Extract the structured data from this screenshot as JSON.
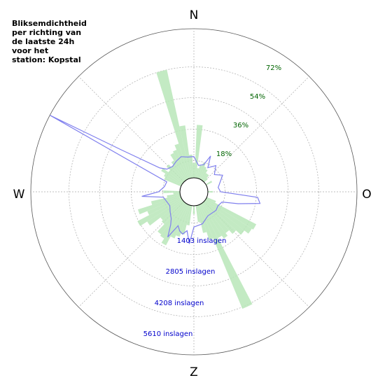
{
  "title_lines": [
    "Bliksemdichtheid",
    "per richting van",
    "de laatste 24h",
    "voor het",
    "station: Kopstal"
  ],
  "compass": {
    "n": "N",
    "e": "O",
    "s": "Z",
    "w": "W"
  },
  "percent_labels": [
    "18%",
    "36%",
    "54%",
    "72%"
  ],
  "count_labels": [
    "1403 inslagen",
    "2805 inslagen",
    "4208 inslagen",
    "5610 inslagen"
  ],
  "colors": {
    "bars": "#b8e6b8",
    "line": "#8080ee",
    "percent_text": "#006400",
    "count_text": "#0000cc"
  },
  "chart_data": {
    "type": "polar",
    "theta_direction": "clockwise, 0° = north",
    "radial_percent_ticks": [
      18,
      36,
      54,
      72
    ],
    "radial_count_ticks": [
      1403,
      2805,
      4208,
      5610
    ],
    "rmax_percent": 90,
    "rmax_count": 7013,
    "bar_width_deg": 5,
    "bars_percent": [
      {
        "dir": 0,
        "pct": 9
      },
      {
        "dir": 5,
        "pct": 32
      },
      {
        "dir": 10,
        "pct": 6
      },
      {
        "dir": 15,
        "pct": 8
      },
      {
        "dir": 20,
        "pct": 10
      },
      {
        "dir": 25,
        "pct": 8
      },
      {
        "dir": 30,
        "pct": 7
      },
      {
        "dir": 35,
        "pct": 5
      },
      {
        "dir": 40,
        "pct": 5
      },
      {
        "dir": 45,
        "pct": 3
      },
      {
        "dir": 60,
        "pct": 4
      },
      {
        "dir": 90,
        "pct": 3
      },
      {
        "dir": 115,
        "pct": 6
      },
      {
        "dir": 120,
        "pct": 34
      },
      {
        "dir": 125,
        "pct": 33
      },
      {
        "dir": 130,
        "pct": 30
      },
      {
        "dir": 135,
        "pct": 26
      },
      {
        "dir": 140,
        "pct": 23
      },
      {
        "dir": 145,
        "pct": 25
      },
      {
        "dir": 150,
        "pct": 23
      },
      {
        "dir": 155,
        "pct": 68
      },
      {
        "dir": 160,
        "pct": 22
      },
      {
        "dir": 165,
        "pct": 17
      },
      {
        "dir": 170,
        "pct": 10
      },
      {
        "dir": 180,
        "pct": 5
      },
      {
        "dir": 190,
        "pct": 12
      },
      {
        "dir": 195,
        "pct": 18
      },
      {
        "dir": 200,
        "pct": 20
      },
      {
        "dir": 205,
        "pct": 22
      },
      {
        "dir": 210,
        "pct": 28
      },
      {
        "dir": 215,
        "pct": 25
      },
      {
        "dir": 220,
        "pct": 24
      },
      {
        "dir": 225,
        "pct": 18
      },
      {
        "dir": 230,
        "pct": 17
      },
      {
        "dir": 235,
        "pct": 25
      },
      {
        "dir": 240,
        "pct": 30
      },
      {
        "dir": 245,
        "pct": 22
      },
      {
        "dir": 250,
        "pct": 27
      },
      {
        "dir": 255,
        "pct": 18
      },
      {
        "dir": 260,
        "pct": 8
      },
      {
        "dir": 265,
        "pct": 4
      },
      {
        "dir": 270,
        "pct": 10
      },
      {
        "dir": 295,
        "pct": 11
      },
      {
        "dir": 300,
        "pct": 12
      },
      {
        "dir": 305,
        "pct": 15
      },
      {
        "dir": 310,
        "pct": 11
      },
      {
        "dir": 315,
        "pct": 14
      },
      {
        "dir": 320,
        "pct": 12
      },
      {
        "dir": 325,
        "pct": 14
      },
      {
        "dir": 330,
        "pct": 18
      },
      {
        "dir": 335,
        "pct": 19
      },
      {
        "dir": 340,
        "pct": 22
      },
      {
        "dir": 345,
        "pct": 67
      },
      {
        "dir": 350,
        "pct": 32
      },
      {
        "dir": 355,
        "pct": 14
      }
    ],
    "line_counts": [
      {
        "dir": 0,
        "count": 1000
      },
      {
        "dir": 10,
        "count": 600
      },
      {
        "dir": 20,
        "count": 700
      },
      {
        "dir": 25,
        "count": 1200
      },
      {
        "dir": 30,
        "count": 650
      },
      {
        "dir": 40,
        "count": 950
      },
      {
        "dir": 50,
        "count": 600
      },
      {
        "dir": 60,
        "count": 900
      },
      {
        "dir": 70,
        "count": 650
      },
      {
        "dir": 80,
        "count": 500
      },
      {
        "dir": 90,
        "count": 600
      },
      {
        "dir": 95,
        "count": 2350
      },
      {
        "dir": 100,
        "count": 2500
      },
      {
        "dir": 105,
        "count": 1500
      },
      {
        "dir": 110,
        "count": 750
      },
      {
        "dir": 120,
        "count": 650
      },
      {
        "dir": 130,
        "count": 700
      },
      {
        "dir": 150,
        "count": 650
      },
      {
        "dir": 165,
        "count": 900
      },
      {
        "dir": 180,
        "count": 1000
      },
      {
        "dir": 185,
        "count": 1800
      },
      {
        "dir": 190,
        "count": 1200
      },
      {
        "dir": 195,
        "count": 1400
      },
      {
        "dir": 200,
        "count": 1300
      },
      {
        "dir": 205,
        "count": 1100
      },
      {
        "dir": 210,
        "count": 1800
      },
      {
        "dir": 215,
        "count": 1250
      },
      {
        "dir": 220,
        "count": 1000
      },
      {
        "dir": 230,
        "count": 800
      },
      {
        "dir": 240,
        "count": 650
      },
      {
        "dir": 260,
        "count": 800
      },
      {
        "dir": 265,
        "count": 1800
      },
      {
        "dir": 270,
        "count": 1000
      },
      {
        "dir": 280,
        "count": 750
      },
      {
        "dir": 290,
        "count": 700
      },
      {
        "dir": 298,
        "count": 7000
      },
      {
        "dir": 300,
        "count": 3300
      },
      {
        "dir": 305,
        "count": 1300
      },
      {
        "dir": 310,
        "count": 1000
      },
      {
        "dir": 320,
        "count": 900
      },
      {
        "dir": 330,
        "count": 1000
      },
      {
        "dir": 340,
        "count": 1100
      },
      {
        "dir": 350,
        "count": 1000
      },
      {
        "dir": 360,
        "count": 1000
      }
    ]
  }
}
